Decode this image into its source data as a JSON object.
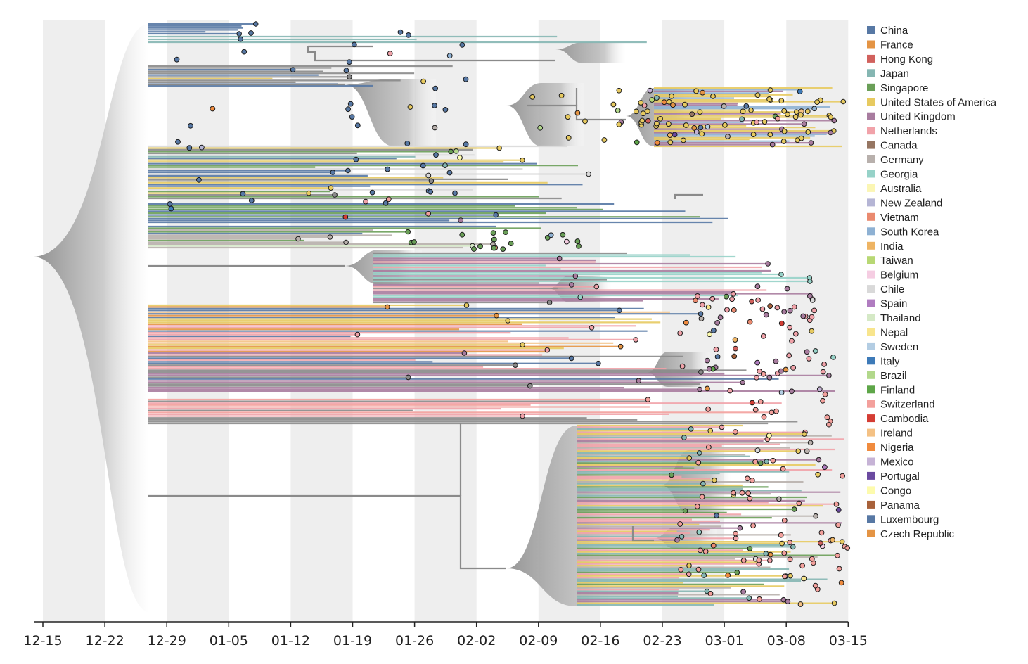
{
  "chart_data": {
    "type": "phylogenetic-tree",
    "title": "",
    "xlabel": "",
    "ylabel": "",
    "x_axis": {
      "ticks": [
        "12-15",
        "12-22",
        "12-29",
        "01-05",
        "01-12",
        "01-19",
        "01-26",
        "02-02",
        "02-09",
        "02-16",
        "02-23",
        "03-01",
        "03-08",
        "03-15"
      ],
      "tick_interval_days": 7,
      "alternating_grey_bands": true
    },
    "legend": {
      "position": "right",
      "items": [
        {
          "name": "China",
          "color": "#5778a4"
        },
        {
          "name": "France",
          "color": "#e49444"
        },
        {
          "name": "Hong Kong",
          "color": "#d1615d"
        },
        {
          "name": "Japan",
          "color": "#85b6b2"
        },
        {
          "name": "Singapore",
          "color": "#6a9f58"
        },
        {
          "name": "United States of America",
          "color": "#e7ca60"
        },
        {
          "name": "United Kingdom",
          "color": "#a87c9f"
        },
        {
          "name": "Netherlands",
          "color": "#f1a2a9"
        },
        {
          "name": "Canada",
          "color": "#967662"
        },
        {
          "name": "Germany",
          "color": "#b8b0ac"
        },
        {
          "name": "Georgia",
          "color": "#96d2c8"
        },
        {
          "name": "Australia",
          "color": "#fbf6b4"
        },
        {
          "name": "New Zealand",
          "color": "#b5b5d5"
        },
        {
          "name": "Vietnam",
          "color": "#ea8a6f"
        },
        {
          "name": "South Korea",
          "color": "#8eb1d3"
        },
        {
          "name": "India",
          "color": "#eeb463"
        },
        {
          "name": "Taiwan",
          "color": "#b8d874"
        },
        {
          "name": "Belgium",
          "color": "#f5cde2"
        },
        {
          "name": "Chile",
          "color": "#d9d9d9"
        },
        {
          "name": "Spain",
          "color": "#b07cc0"
        },
        {
          "name": "Thailand",
          "color": "#d5e9c6"
        },
        {
          "name": "Nepal",
          "color": "#f8e58d"
        },
        {
          "name": "Sweden",
          "color": "#b3cde3"
        },
        {
          "name": "Italy",
          "color": "#3d7ab8"
        },
        {
          "name": "Brazil",
          "color": "#b2d88b"
        },
        {
          "name": "Finland",
          "color": "#5ea648"
        },
        {
          "name": "Switzerland",
          "color": "#f3a09c"
        },
        {
          "name": "Cambodia",
          "color": "#d43d34"
        },
        {
          "name": "Ireland",
          "color": "#f4c184"
        },
        {
          "name": "Nigeria",
          "color": "#f08b3e"
        },
        {
          "name": "Mexico",
          "color": "#c6b3d6"
        },
        {
          "name": "Portugal",
          "color": "#6b4aa0"
        },
        {
          "name": "Congo",
          "color": "#fdfbad"
        },
        {
          "name": "Panama",
          "color": "#a8613a"
        },
        {
          "name": "Luxembourg",
          "color": "#5778a4"
        },
        {
          "name": "Czech Republic",
          "color": "#e49444"
        }
      ]
    },
    "colors": {
      "branch": "#8a8a8a",
      "band": "#eeeeee",
      "axis": "#222222",
      "node_stroke": "#1a1a1a"
    },
    "sample_clusters": [
      {
        "start": "12-29",
        "end": "01-08",
        "country": "China",
        "tips": 14
      },
      {
        "start": "01-18",
        "end": "02-01",
        "country": "China",
        "tips": 40
      },
      {
        "start": "01-25",
        "end": "02-14",
        "country": "Singapore",
        "tips": 18
      },
      {
        "start": "02-08",
        "end": "02-25",
        "country": "United States of America",
        "tips": 22
      },
      {
        "start": "02-20",
        "end": "03-12",
        "country": "United States of America",
        "tips": 60
      },
      {
        "start": "02-25",
        "end": "03-14",
        "country": "Netherlands",
        "tips": 45
      },
      {
        "start": "02-25",
        "end": "03-15",
        "country": "Switzerland",
        "tips": 80
      },
      {
        "start": "02-27",
        "end": "03-12",
        "country": "United Kingdom",
        "tips": 30
      }
    ]
  },
  "icons": [
    "legend-swatch"
  ]
}
